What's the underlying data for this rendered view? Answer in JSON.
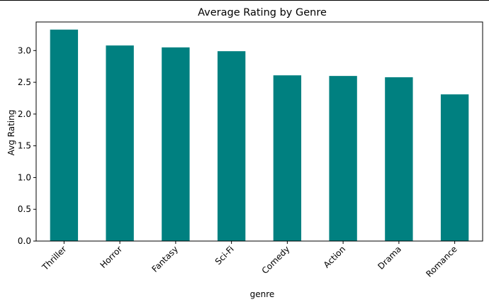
{
  "chart_data": {
    "type": "bar",
    "title": "Average Rating by Genre",
    "xlabel": "genre",
    "ylabel": "Avg Rating",
    "categories": [
      "Thriller",
      "Horror",
      "Fantasy",
      "Sci-Fi",
      "Comedy",
      "Action",
      "Drama",
      "Romance"
    ],
    "values": [
      3.33,
      3.08,
      3.05,
      2.99,
      2.61,
      2.6,
      2.58,
      2.31
    ],
    "ylim": [
      0,
      3.45
    ],
    "yticks": [
      0.0,
      0.5,
      1.0,
      1.5,
      2.0,
      2.5,
      3.0
    ],
    "ytick_labels": [
      "0.0",
      "0.5",
      "1.0",
      "1.5",
      "2.0",
      "2.5",
      "3.0"
    ],
    "bar_color": "#008080",
    "grid": false,
    "legend": false
  }
}
